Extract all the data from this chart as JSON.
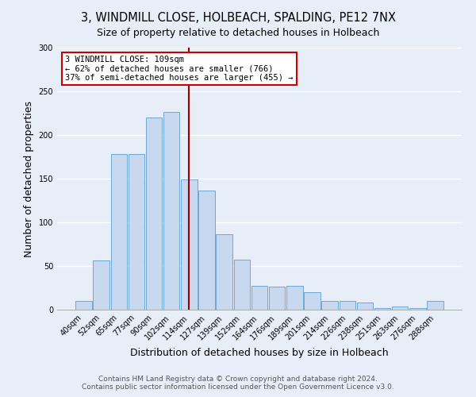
{
  "title": "3, WINDMILL CLOSE, HOLBEACH, SPALDING, PE12 7NX",
  "subtitle": "Size of property relative to detached houses in Holbeach",
  "xlabel": "Distribution of detached houses by size in Holbeach",
  "ylabel": "Number of detached properties",
  "bar_labels": [
    "40sqm",
    "52sqm",
    "65sqm",
    "77sqm",
    "90sqm",
    "102sqm",
    "114sqm",
    "127sqm",
    "139sqm",
    "152sqm",
    "164sqm",
    "176sqm",
    "189sqm",
    "201sqm",
    "214sqm",
    "226sqm",
    "238sqm",
    "251sqm",
    "263sqm",
    "276sqm",
    "288sqm"
  ],
  "bar_values": [
    10,
    56,
    178,
    178,
    220,
    226,
    149,
    136,
    86,
    57,
    27,
    26,
    27,
    20,
    10,
    10,
    8,
    2,
    4,
    2,
    10
  ],
  "bar_color": "#c8d8ee",
  "bar_edge_color": "#6fa8d4",
  "vline_x": 6.0,
  "vline_color": "#990000",
  "annotation_line1": "3 WINDMILL CLOSE: 109sqm",
  "annotation_line2": "← 62% of detached houses are smaller (766)",
  "annotation_line3": "37% of semi-detached houses are larger (455) →",
  "annotation_box_color": "#ffffff",
  "annotation_box_edge": "#cc0000",
  "ylim": [
    0,
    300
  ],
  "yticks": [
    0,
    50,
    100,
    150,
    200,
    250,
    300
  ],
  "footer1": "Contains HM Land Registry data © Crown copyright and database right 2024.",
  "footer2": "Contains public sector information licensed under the Open Government Licence v3.0.",
  "bg_color": "#e8eef8",
  "plot_bg_color": "#e8eef8",
  "grid_color": "#ffffff",
  "title_fontsize": 10.5,
  "subtitle_fontsize": 9,
  "tick_fontsize": 7,
  "label_fontsize": 9,
  "footer_fontsize": 6.5
}
